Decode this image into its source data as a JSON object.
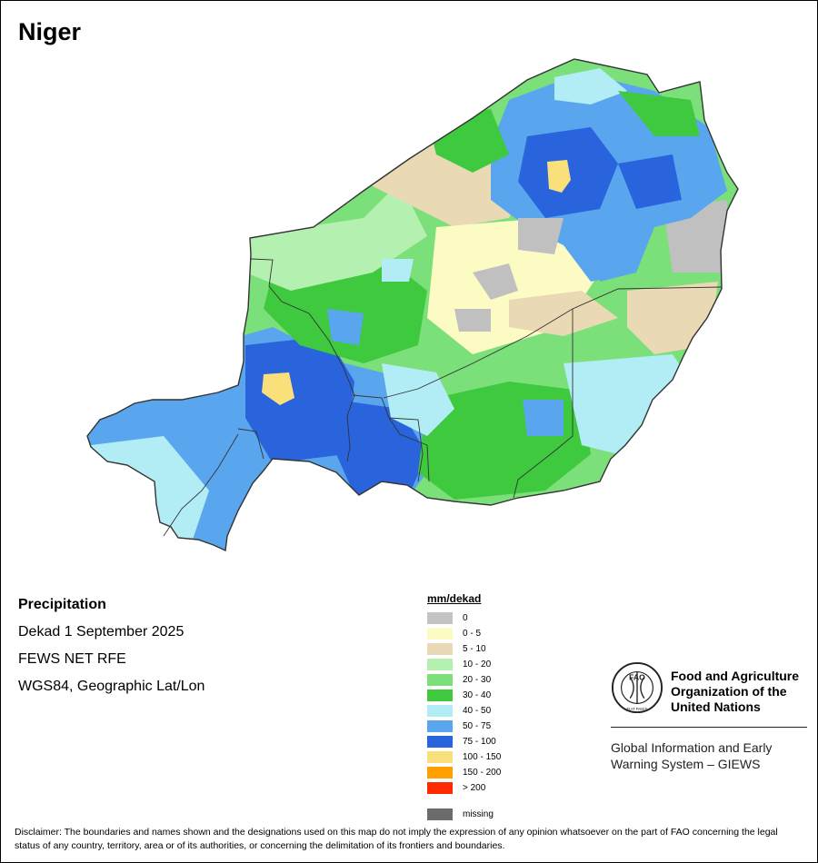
{
  "map": {
    "title": "Niger",
    "colors": {
      "c0": "#c0c0c0",
      "c1": "#fdfbc4",
      "c2": "#ead9b5",
      "c3": "#b4f0b0",
      "c4": "#7ce07a",
      "c5": "#3ec93e",
      "c6": "#b2ecf5",
      "c7": "#5aa6ee",
      "c8": "#2a64dd",
      "c9": "#fae07a",
      "border": "#333333"
    }
  },
  "info": {
    "variable": "Precipitation",
    "period": "Dekad 1 September 2025",
    "source": "FEWS NET RFE",
    "projection": "WGS84, Geographic Lat/Lon"
  },
  "legend": {
    "title": "mm/dekad",
    "items": [
      {
        "label": "0",
        "color": "#c3c3c3"
      },
      {
        "label": "0 - 5",
        "color": "#fdfbc4"
      },
      {
        "label": "5 - 10",
        "color": "#ead9b5"
      },
      {
        "label": "10 - 20",
        "color": "#b4f0b0"
      },
      {
        "label": "20 - 30",
        "color": "#7ce07a"
      },
      {
        "label": "30 - 40",
        "color": "#3ec93e"
      },
      {
        "label": "40 - 50",
        "color": "#b2ecf5"
      },
      {
        "label": "50 - 75",
        "color": "#5aa6ee"
      },
      {
        "label": "75 - 100",
        "color": "#2a64dd"
      },
      {
        "label": "100 - 150",
        "color": "#fae07a"
      },
      {
        "label": "150 - 200",
        "color": "#ff9f00"
      },
      {
        "label": "> 200",
        "color": "#ff2a00"
      }
    ],
    "missing": {
      "label": "missing",
      "color": "#6b6b6b"
    }
  },
  "org": {
    "logo_text": "FAO",
    "logo_subtext": "FIAT PANIS",
    "name_lines": [
      "Food and Agriculture",
      "Organization of the",
      "United Nations"
    ],
    "system_lines": [
      "Global Information and Early",
      "Warning System – GIEWS"
    ]
  },
  "disclaimer": "Disclaimer: The boundaries and names shown and the designations used on this map do not imply the expression of any opinion whatsoever on the part of FAO concerning the legal status of any country, territory, area or of its authorities, or concerning the delimitation of its frontiers and boundaries."
}
